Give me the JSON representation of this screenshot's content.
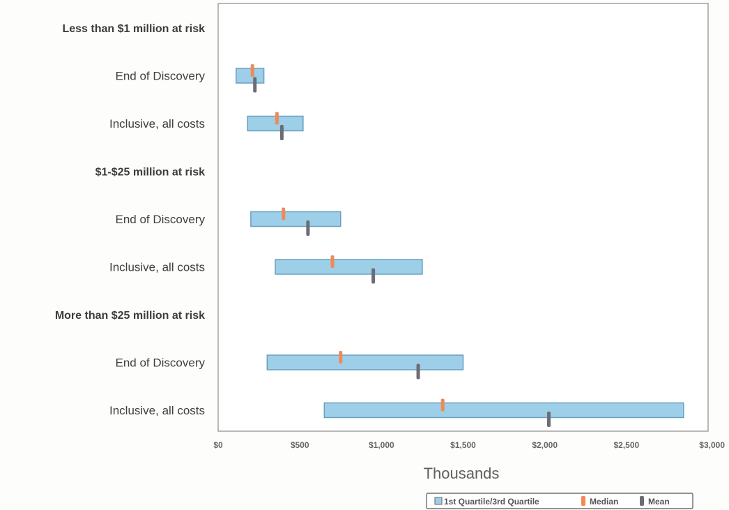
{
  "chart_data": {
    "type": "bar",
    "orientation": "horizontal-range",
    "xlabel": "Thousands",
    "xlim": [
      0,
      3000
    ],
    "xticks": [
      0,
      500,
      1000,
      1500,
      2000,
      2500,
      3000
    ],
    "xtick_labels": [
      "$0",
      "$500",
      "$1,000",
      "$1,500",
      "$2,000",
      "$2,500",
      "$3,000"
    ],
    "grid": false,
    "legend": {
      "position": "bottom-right",
      "items": [
        "1st Quartile/3rd Quartile",
        "Median",
        "Mean"
      ]
    },
    "colors": {
      "quartile_bar": "#9dcfe8",
      "quartile_border": "#6a9fc0",
      "median": "#f08a55",
      "mean": "#6c6c74"
    },
    "categories": [
      {
        "label": "Less than $1 million at risk",
        "header": true
      },
      {
        "label": "End of Discovery",
        "header": false,
        "q1": 110,
        "q3": 280,
        "median": 210,
        "mean": 225
      },
      {
        "label": "Inclusive, all costs",
        "header": false,
        "q1": 180,
        "q3": 520,
        "median": 360,
        "mean": 390
      },
      {
        "label": "$1-$25 million at risk",
        "header": true
      },
      {
        "label": "End of Discovery",
        "header": false,
        "q1": 200,
        "q3": 750,
        "median": 400,
        "mean": 550
      },
      {
        "label": "Inclusive, all costs",
        "header": false,
        "q1": 350,
        "q3": 1250,
        "median": 700,
        "mean": 950
      },
      {
        "label": "More than $25 million at risk",
        "header": true
      },
      {
        "label": "End of Discovery",
        "header": false,
        "q1": 300,
        "q3": 1500,
        "median": 750,
        "mean": 1225
      },
      {
        "label": "Inclusive, all costs",
        "header": false,
        "q1": 650,
        "q3": 2850,
        "median": 1375,
        "mean": 2025
      }
    ]
  }
}
